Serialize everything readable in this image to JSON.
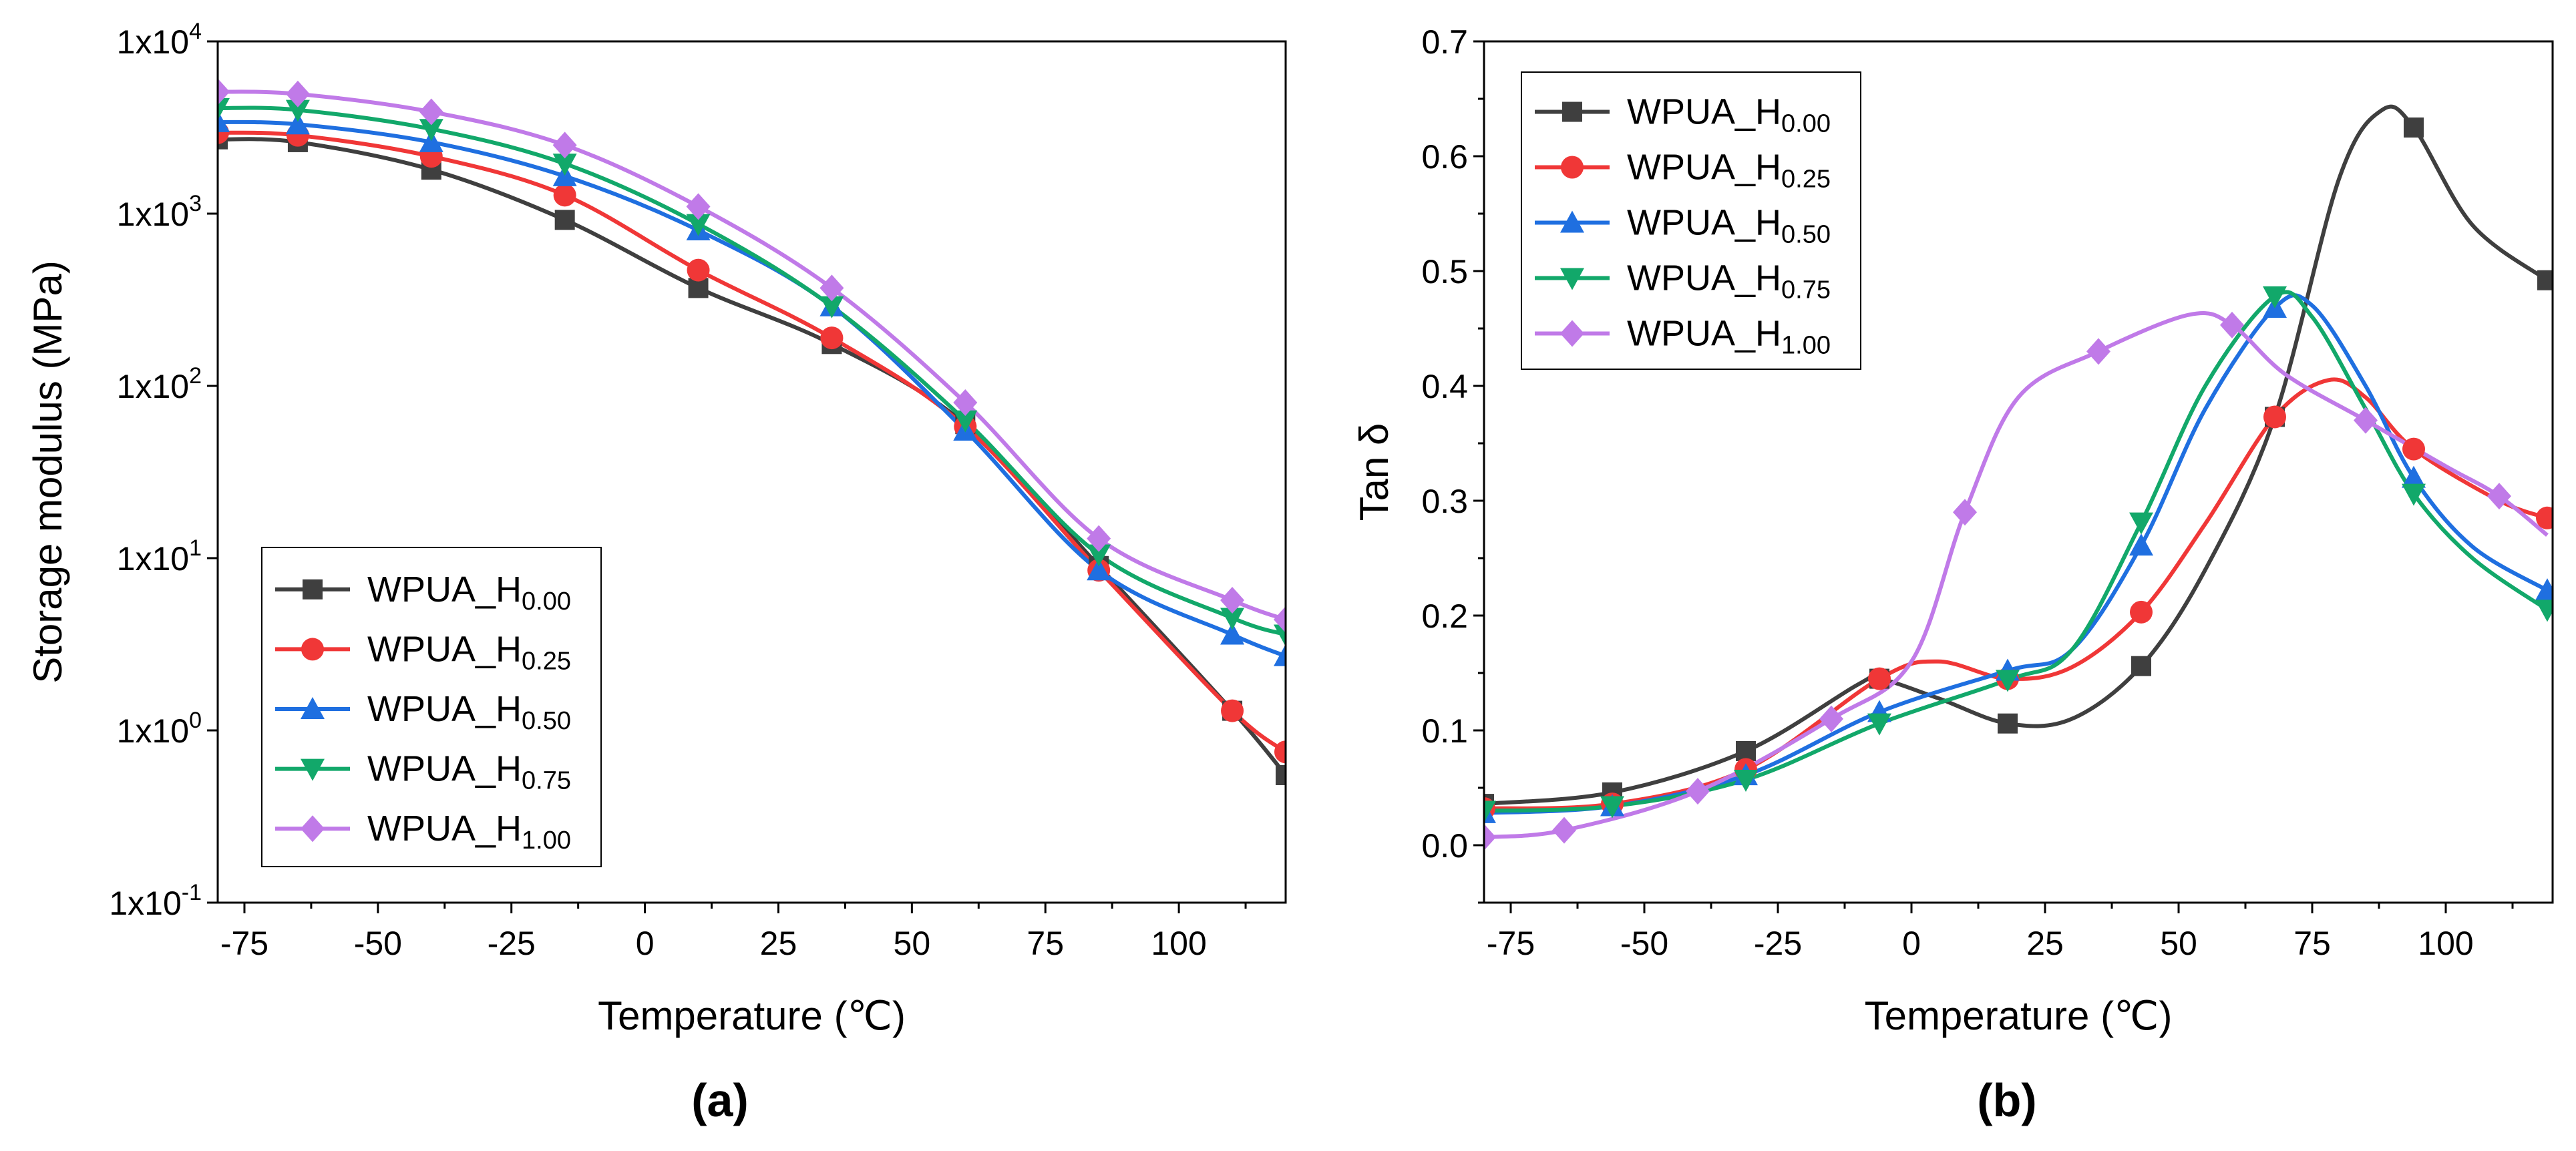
{
  "colors": {
    "WPUA_H0.00": "#3f3f3f",
    "WPUA_H0.25": "#f03737",
    "WPUA_H0.50": "#1f6fe0",
    "WPUA_H0.75": "#12a86a",
    "WPUA_H1.00": "#c07ae8"
  },
  "chart_data": [
    {
      "type": "line",
      "panel_label": "(a)",
      "xlabel": "Temperature (℃)",
      "ylabel": "Storage modulus (MPa)",
      "xlim": [
        -80,
        120
      ],
      "ylim": [
        0.1,
        10000
      ],
      "yscale": "log",
      "xticks": [
        -75,
        -50,
        -25,
        0,
        25,
        50,
        75,
        100
      ],
      "xtick_labels": [
        "-75",
        "-50",
        "-25",
        "0",
        "25",
        "50",
        "75",
        "100"
      ],
      "yticks": [
        0.1,
        1,
        10,
        100,
        1000,
        10000
      ],
      "ytick_labels": [
        {
          "base": "1x10",
          "exp": "-1"
        },
        {
          "base": "1x10",
          "exp": "0"
        },
        {
          "base": "1x10",
          "exp": "1"
        },
        {
          "base": "1x10",
          "exp": "2"
        },
        {
          "base": "1x10",
          "exp": "3"
        },
        {
          "base": "1x10",
          "exp": "4"
        }
      ],
      "grid": false,
      "legend_position": "lower-left",
      "series": [
        {
          "name": "WPUA_H0.00",
          "label": "WPUA_H",
          "sub": "0.00",
          "marker": "square",
          "x": [
            -80,
            -65,
            -40,
            -15,
            10,
            35,
            60,
            85,
            110,
            120
          ],
          "y": [
            2700,
            2600,
            1800,
            920,
            370,
            175,
            60,
            9,
            1.3,
            0.55
          ]
        },
        {
          "name": "WPUA_H0.25",
          "label": "WPUA_H",
          "sub": "0.25",
          "marker": "circle",
          "x": [
            -80,
            -65,
            -40,
            -15,
            10,
            35,
            60,
            85,
            110,
            120
          ],
          "y": [
            2950,
            2850,
            2150,
            1280,
            470,
            190,
            58,
            8.5,
            1.3,
            0.75
          ]
        },
        {
          "name": "WPUA_H0.50",
          "label": "WPUA_H",
          "sub": "0.50",
          "marker": "triangle-up",
          "x": [
            -80,
            -65,
            -40,
            -15,
            10,
            35,
            60,
            85,
            110,
            120
          ],
          "y": [
            3400,
            3300,
            2600,
            1650,
            800,
            290,
            55,
            8.5,
            3.6,
            2.7
          ]
        },
        {
          "name": "WPUA_H0.75",
          "label": "WPUA_H",
          "sub": "0.75",
          "marker": "triangle-down",
          "x": [
            -80,
            -65,
            -40,
            -15,
            10,
            35,
            60,
            85,
            110,
            120
          ],
          "y": [
            4100,
            4000,
            3100,
            1950,
            870,
            290,
            63,
            10.5,
            4.5,
            3.6
          ]
        },
        {
          "name": "WPUA_H1.00",
          "label": "WPUA_H",
          "sub": "1.00",
          "marker": "diamond",
          "x": [
            -80,
            -65,
            -40,
            -15,
            10,
            35,
            60,
            85,
            110,
            120
          ],
          "y": [
            5100,
            4950,
            3900,
            2500,
            1100,
            370,
            80,
            13,
            5.7,
            4.4
          ]
        }
      ]
    },
    {
      "type": "line",
      "panel_label": "(b)",
      "xlabel": "Temperature (℃)",
      "ylabel": "Tan δ",
      "xlim": [
        -80,
        120
      ],
      "ylim": [
        -0.05,
        0.7
      ],
      "yscale": "linear",
      "xticks": [
        -75,
        -50,
        -25,
        0,
        25,
        50,
        75,
        100
      ],
      "xtick_labels": [
        "-75",
        "-50",
        "-25",
        "0",
        "25",
        "50",
        "75",
        "100"
      ],
      "yticks": [
        0.0,
        0.1,
        0.2,
        0.3,
        0.4,
        0.5,
        0.6,
        0.7
      ],
      "ytick_labels": [
        "0.0",
        "0.1",
        "0.2",
        "0.3",
        "0.4",
        "0.5",
        "0.6",
        "0.7"
      ],
      "grid": false,
      "legend_position": "top-left",
      "series": [
        {
          "name": "WPUA_H0.00",
          "label": "WPUA_H",
          "sub": "0.00",
          "marker": "square",
          "marker_x": [
            -80,
            -56,
            -31,
            -6,
            18,
            43,
            68,
            94,
            119
          ],
          "x": [
            -80,
            -56,
            -31,
            -10,
            -6,
            5,
            18,
            30,
            43,
            55,
            68,
            80,
            88,
            94,
            105,
            119
          ],
          "y": [
            0.036,
            0.046,
            0.082,
            0.14,
            0.145,
            0.128,
            0.106,
            0.11,
            0.156,
            0.24,
            0.373,
            0.58,
            0.64,
            0.625,
            0.54,
            0.492
          ]
        },
        {
          "name": "WPUA_H0.25",
          "label": "WPUA_H",
          "sub": "0.25",
          "marker": "circle",
          "marker_x": [
            -80,
            -56,
            -31,
            -6,
            18,
            43,
            68,
            94,
            119
          ],
          "x": [
            -80,
            -56,
            -31,
            -6,
            5,
            18,
            30,
            43,
            55,
            68,
            78,
            85,
            94,
            110,
            119
          ],
          "y": [
            0.032,
            0.036,
            0.066,
            0.145,
            0.16,
            0.145,
            0.155,
            0.203,
            0.28,
            0.373,
            0.405,
            0.39,
            0.345,
            0.3,
            0.285
          ]
        },
        {
          "name": "WPUA_H0.50",
          "label": "WPUA_H",
          "sub": "0.50",
          "marker": "triangle-up",
          "marker_x": [
            -80,
            -56,
            -31,
            -6,
            18,
            43,
            68,
            94,
            119
          ],
          "x": [
            -80,
            -56,
            -31,
            -6,
            18,
            30,
            43,
            55,
            68,
            75,
            85,
            94,
            105,
            119
          ],
          "y": [
            0.028,
            0.034,
            0.061,
            0.116,
            0.152,
            0.17,
            0.261,
            0.38,
            0.468,
            0.47,
            0.4,
            0.32,
            0.26,
            0.222
          ]
        },
        {
          "name": "WPUA_H0.75",
          "label": "WPUA_H",
          "sub": "0.75",
          "marker": "triangle-down",
          "marker_x": [
            -80,
            -56,
            -31,
            -6,
            18,
            43,
            68,
            94,
            119
          ],
          "x": [
            -80,
            -56,
            -31,
            -6,
            18,
            30,
            43,
            55,
            68,
            75,
            85,
            94,
            105,
            119
          ],
          "y": [
            0.03,
            0.034,
            0.057,
            0.106,
            0.144,
            0.17,
            0.281,
            0.4,
            0.478,
            0.46,
            0.38,
            0.306,
            0.25,
            0.205
          ]
        },
        {
          "name": "WPUA_H1.00",
          "label": "WPUA_H",
          "sub": "1.00",
          "marker": "diamond",
          "marker_x": [
            -80,
            -65,
            -40,
            -15,
            10,
            35,
            60,
            85,
            110
          ],
          "x": [
            -80,
            -65,
            -40,
            -15,
            0,
            10,
            20,
            35,
            52,
            60,
            70,
            85,
            100,
            110,
            119
          ],
          "y": [
            0.007,
            0.013,
            0.047,
            0.11,
            0.16,
            0.29,
            0.39,
            0.43,
            0.462,
            0.453,
            0.41,
            0.37,
            0.33,
            0.304,
            0.27
          ]
        }
      ]
    }
  ]
}
